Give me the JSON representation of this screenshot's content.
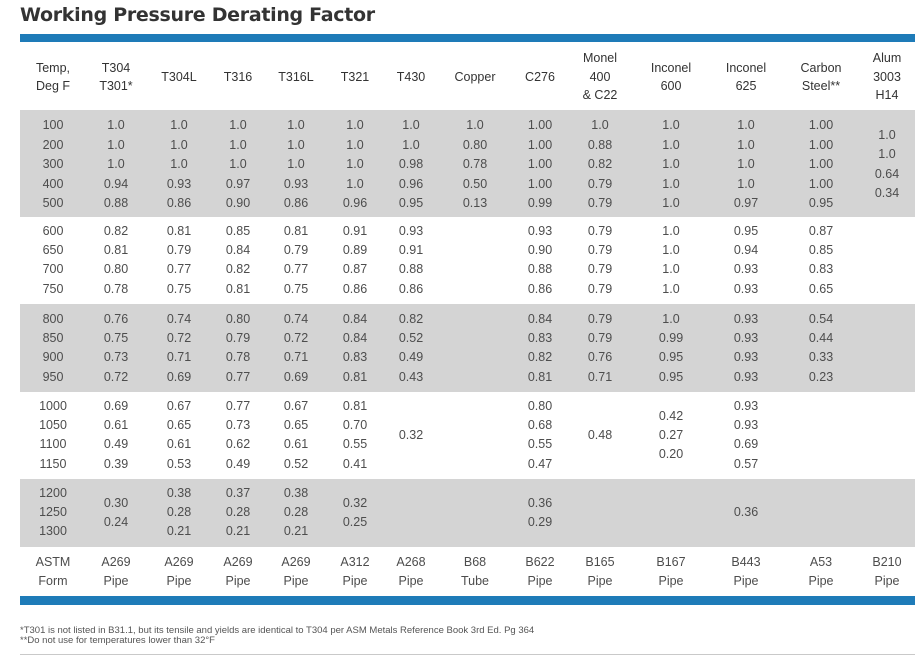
{
  "title": "Working Pressure Derating Factor",
  "headers": [
    [
      "Temp,",
      "Deg F"
    ],
    [
      "T304",
      "T301*"
    ],
    [
      "T304L"
    ],
    [
      "T316"
    ],
    [
      "T316L"
    ],
    [
      "T321"
    ],
    [
      "T430"
    ],
    [
      "Copper"
    ],
    [
      "C276"
    ],
    [
      "Monel",
      "400",
      "& C22"
    ],
    [
      "Inconel",
      "600"
    ],
    [
      "Inconel",
      "625"
    ],
    [
      "Carbon",
      "Steel**"
    ],
    [
      "Alum",
      "3003",
      "H14"
    ]
  ],
  "groups": [
    {
      "shaded": true,
      "columns": [
        {
          "lines": [
            "100",
            "200",
            "300",
            "400",
            "500"
          ]
        },
        {
          "lines": [
            "1.0",
            "1.0",
            "1.0",
            "0.94",
            "0.88"
          ]
        },
        {
          "lines": [
            "1.0",
            "1.0",
            "1.0",
            "0.93",
            "0.86"
          ]
        },
        {
          "lines": [
            "1.0",
            "1.0",
            "1.0",
            "0.97",
            "0.90"
          ]
        },
        {
          "lines": [
            "1.0",
            "1.0",
            "1.0",
            "0.93",
            "0.86"
          ]
        },
        {
          "lines": [
            "1.0",
            "1.0",
            "1.0",
            "1.0",
            "0.96"
          ]
        },
        {
          "lines": [
            "1.0",
            "1.0",
            "0.98",
            "0.96",
            "0.95"
          ]
        },
        {
          "lines": [
            "1.0",
            "0.80",
            "0.78",
            "0.50",
            "0.13"
          ]
        },
        {
          "lines": [
            "1.00",
            "1.00",
            "1.00",
            "1.00",
            "0.99"
          ]
        },
        {
          "lines": [
            "1.0",
            "0.88",
            "0.82",
            "0.79",
            "0.79"
          ]
        },
        {
          "lines": [
            "1.0",
            "1.0",
            "1.0",
            "1.0",
            "1.0"
          ]
        },
        {
          "lines": [
            "1.0",
            "1.0",
            "1.0",
            "1.0",
            "0.97"
          ]
        },
        {
          "lines": [
            "1.00",
            "1.00",
            "1.00",
            "1.00",
            "0.95"
          ]
        },
        {
          "lines": [
            "1.0",
            "1.0",
            "0.64",
            "0.34"
          ]
        }
      ]
    },
    {
      "shaded": false,
      "columns": [
        {
          "lines": [
            "600",
            "650",
            "700",
            "750"
          ]
        },
        {
          "lines": [
            "0.82",
            "0.81",
            "0.80",
            "0.78"
          ]
        },
        {
          "lines": [
            "0.81",
            "0.79",
            "0.77",
            "0.75"
          ]
        },
        {
          "lines": [
            "0.85",
            "0.84",
            "0.82",
            "0.81"
          ]
        },
        {
          "lines": [
            "0.81",
            "0.79",
            "0.77",
            "0.75"
          ]
        },
        {
          "lines": [
            "0.91",
            "0.89",
            "0.87",
            "0.86"
          ]
        },
        {
          "lines": [
            "0.93",
            "0.91",
            "0.88",
            "0.86"
          ]
        },
        {
          "lines": []
        },
        {
          "lines": [
            "0.93",
            "0.90",
            "0.88",
            "0.86"
          ]
        },
        {
          "lines": [
            "0.79",
            "0.79",
            "0.79",
            "0.79"
          ]
        },
        {
          "lines": [
            "1.0",
            "1.0",
            "1.0",
            "1.0"
          ]
        },
        {
          "lines": [
            "0.95",
            "0.94",
            "0.93",
            "0.93"
          ]
        },
        {
          "lines": [
            "0.87",
            "0.85",
            "0.83",
            "0.65"
          ]
        },
        {
          "lines": []
        }
      ]
    },
    {
      "shaded": true,
      "columns": [
        {
          "lines": [
            "800",
            "850",
            "900",
            "950"
          ]
        },
        {
          "lines": [
            "0.76",
            "0.75",
            "0.73",
            "0.72"
          ]
        },
        {
          "lines": [
            "0.74",
            "0.72",
            "0.71",
            "0.69"
          ]
        },
        {
          "lines": [
            "0.80",
            "0.79",
            "0.78",
            "0.77"
          ]
        },
        {
          "lines": [
            "0.74",
            "0.72",
            "0.71",
            "0.69"
          ]
        },
        {
          "lines": [
            "0.84",
            "0.84",
            "0.83",
            "0.81"
          ]
        },
        {
          "lines": [
            "0.82",
            "0.52",
            "0.49",
            "0.43"
          ]
        },
        {
          "lines": []
        },
        {
          "lines": [
            "0.84",
            "0.83",
            "0.82",
            "0.81"
          ]
        },
        {
          "lines": [
            "0.79",
            "0.79",
            "0.76",
            "0.71"
          ]
        },
        {
          "lines": [
            "1.0",
            "0.99",
            "0.95",
            "0.95"
          ]
        },
        {
          "lines": [
            "0.93",
            "0.93",
            "0.93",
            "0.93"
          ]
        },
        {
          "lines": [
            "0.54",
            "0.44",
            "0.33",
            "0.23"
          ]
        },
        {
          "lines": []
        }
      ]
    },
    {
      "shaded": false,
      "columns": [
        {
          "lines": [
            "1000",
            "1050",
            "1100",
            "1150"
          ]
        },
        {
          "lines": [
            "0.69",
            "0.61",
            "0.49",
            "0.39"
          ]
        },
        {
          "lines": [
            "0.67",
            "0.65",
            "0.61",
            "0.53"
          ]
        },
        {
          "lines": [
            "0.77",
            "0.73",
            "0.62",
            "0.49"
          ]
        },
        {
          "lines": [
            "0.67",
            "0.65",
            "0.61",
            "0.52"
          ]
        },
        {
          "lines": [
            "0.81",
            "0.70",
            "0.55",
            "0.41"
          ]
        },
        {
          "lines": [
            "0.32"
          ]
        },
        {
          "lines": []
        },
        {
          "lines": [
            "0.80",
            "0.68",
            "0.55",
            "0.47"
          ]
        },
        {
          "lines": [
            "0.48"
          ]
        },
        {
          "lines": [
            "0.42",
            "0.27",
            "0.20"
          ]
        },
        {
          "lines": [
            "0.93",
            "0.93",
            "0.69",
            "0.57"
          ]
        },
        {
          "lines": []
        },
        {
          "lines": []
        }
      ]
    },
    {
      "shaded": true,
      "columns": [
        {
          "lines": [
            "1200",
            "1250",
            "1300"
          ]
        },
        {
          "lines": [
            "0.30",
            "0.24"
          ]
        },
        {
          "lines": [
            "0.38",
            "0.28",
            "0.21"
          ]
        },
        {
          "lines": [
            "0.37",
            "0.28",
            "0.21"
          ]
        },
        {
          "lines": [
            "0.38",
            "0.28",
            "0.21"
          ]
        },
        {
          "lines": [
            "0.32",
            "0.25"
          ]
        },
        {
          "lines": []
        },
        {
          "lines": []
        },
        {
          "lines": [
            "0.36",
            "0.29"
          ]
        },
        {
          "lines": []
        },
        {
          "lines": []
        },
        {
          "lines": [
            "0.36"
          ]
        },
        {
          "lines": []
        },
        {
          "lines": []
        }
      ]
    },
    {
      "shaded": false,
      "columns": [
        {
          "lines": [
            "ASTM",
            "Form"
          ]
        },
        {
          "lines": [
            "A269",
            "Pipe"
          ]
        },
        {
          "lines": [
            "A269",
            "Pipe"
          ]
        },
        {
          "lines": [
            "A269",
            "Pipe"
          ]
        },
        {
          "lines": [
            "A269",
            "Pipe"
          ]
        },
        {
          "lines": [
            "A312",
            "Pipe"
          ]
        },
        {
          "lines": [
            "A268",
            "Pipe"
          ]
        },
        {
          "lines": [
            "B68",
            "Tube"
          ]
        },
        {
          "lines": [
            "B622",
            "Pipe"
          ]
        },
        {
          "lines": [
            "B165",
            "Pipe"
          ]
        },
        {
          "lines": [
            "B167",
            "Pipe"
          ]
        },
        {
          "lines": [
            "B443",
            "Pipe"
          ]
        },
        {
          "lines": [
            "A53",
            "Pipe"
          ]
        },
        {
          "lines": [
            "B210",
            "Pipe"
          ]
        }
      ]
    }
  ],
  "footnotes": [
    "*T301 is not listed in B31.1, but its tensile and yields are identical to T304 per ASM Metals Reference Book 3rd Ed. Pg 364",
    "**Do not use for temperatures lower than 32°F"
  ]
}
